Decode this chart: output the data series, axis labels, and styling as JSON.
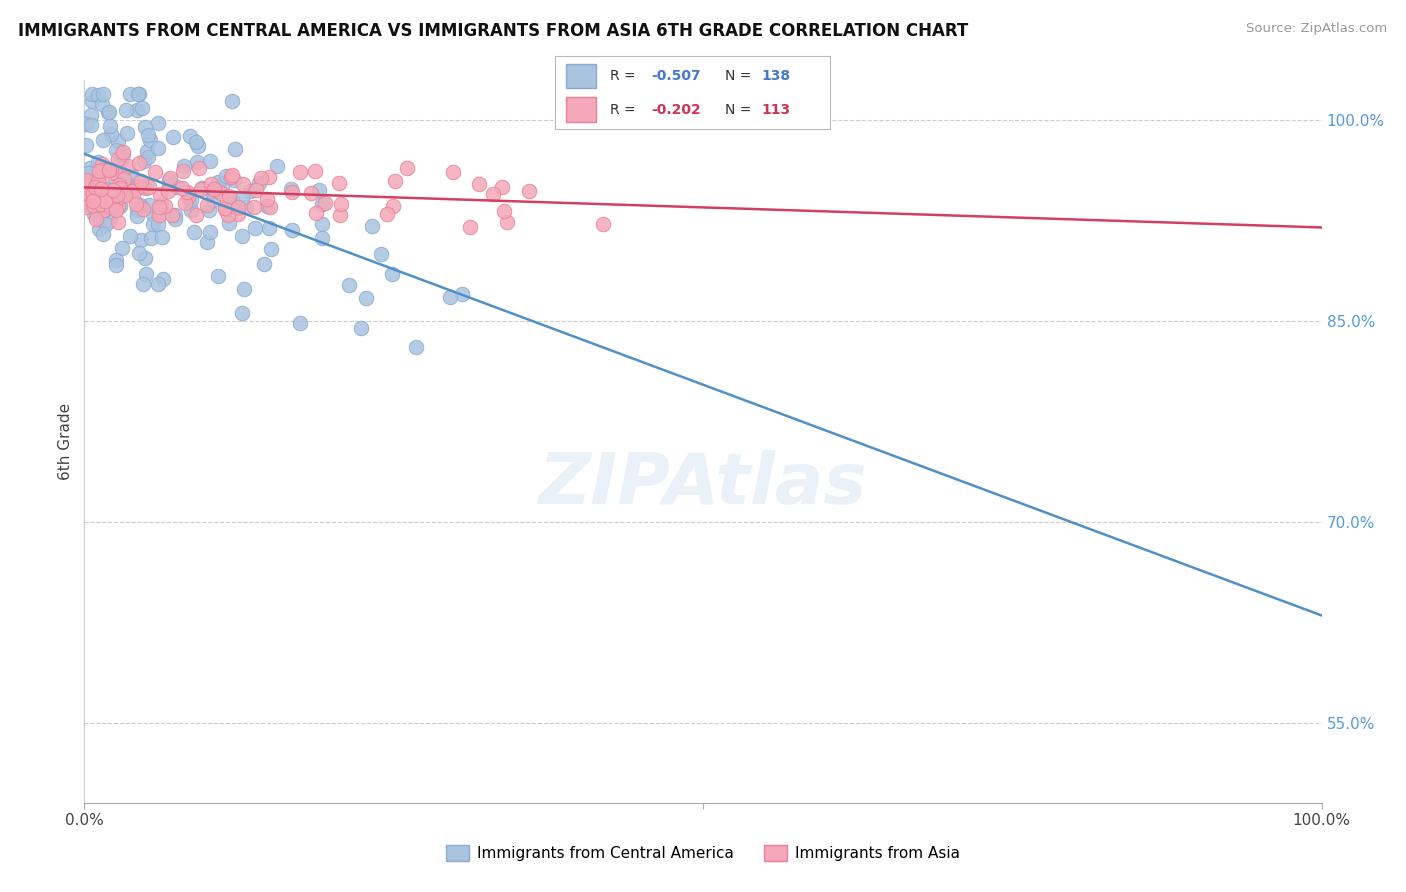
{
  "title": "IMMIGRANTS FROM CENTRAL AMERICA VS IMMIGRANTS FROM ASIA 6TH GRADE CORRELATION CHART",
  "source": "Source: ZipAtlas.com",
  "ylabel": "6th Grade",
  "blue_label": "Immigrants from Central America",
  "pink_label": "Immigrants from Asia",
  "blue_color": "#aac4e0",
  "pink_color": "#f4a8b8",
  "blue_edge": "#88aad0",
  "pink_edge": "#e88098",
  "blue_line_color": "#5090c8",
  "pink_line_color": "#d04060",
  "R_blue": -0.507,
  "R_pink": -0.202,
  "N_blue": 138,
  "N_pink": 113,
  "blue_line_x0": 0.0,
  "blue_line_y0": 0.975,
  "blue_line_x1": 1.0,
  "blue_line_y1": 0.63,
  "pink_line_x0": 0.0,
  "pink_line_y0": 0.95,
  "pink_line_x1": 1.0,
  "pink_line_y1": 0.92,
  "xlim": [
    0.0,
    1.0
  ],
  "ylim": [
    0.49,
    1.03
  ],
  "ytick_vals": [
    0.55,
    0.7,
    0.85,
    1.0
  ],
  "ytick_labels": [
    "55.0%",
    "70.0%",
    "85.0%",
    "100.0%"
  ],
  "watermark_text": "ZIPAtlas",
  "background_color": "#ffffff",
  "grid_color": "#cccccc",
  "legend_blue_R": "-0.507",
  "legend_blue_N": "138",
  "legend_pink_R": "-0.202",
  "legend_pink_N": "113"
}
